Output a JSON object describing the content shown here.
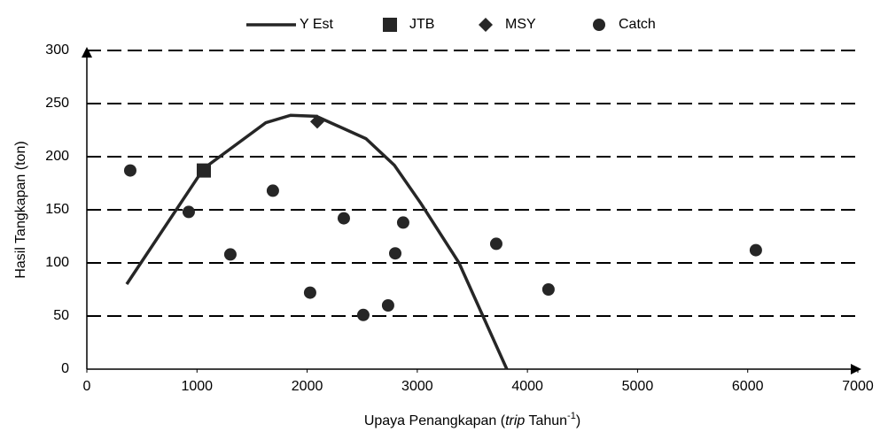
{
  "chart_data": {
    "type": "scatter",
    "y_label": "Hasil Tangkapan (ton)",
    "x_label_parts": [
      "Upaya Penangkapan (",
      "trip",
      " Tahun",
      "-1",
      ")"
    ],
    "xlim": [
      0,
      7000
    ],
    "xticks": [
      0,
      1000,
      2000,
      3000,
      4000,
      5000,
      6000,
      7000
    ],
    "ylim": [
      0,
      300
    ],
    "yticks": [
      0,
      50,
      100,
      150,
      200,
      250,
      300
    ],
    "grid": true,
    "series": [
      {
        "name": "Y Est",
        "style": "line",
        "color": "#262626",
        "x": [
          362,
          1062,
          1625,
          1850,
          2084,
          2534,
          2792,
          3033,
          3379,
          3813
        ],
        "values": [
          80,
          189,
          232,
          239,
          238,
          217,
          192,
          156,
          100,
          0
        ]
      },
      {
        "name": "JTB",
        "style": "marker",
        "marker": "square",
        "color": "#262626",
        "x": [
          1062
        ],
        "values": [
          187
        ]
      },
      {
        "name": "MSY",
        "style": "marker",
        "marker": "diamond",
        "color": "#262626",
        "x": [
          2092
        ],
        "values": [
          233
        ]
      },
      {
        "name": "Catch",
        "style": "marker",
        "marker": "circle",
        "color": "#262626",
        "x": [
          394,
          925,
          1303,
          1689,
          2027,
          2333,
          2510,
          2735,
          2800,
          2872,
          3717,
          4191,
          6074
        ],
        "values": [
          187,
          148,
          108,
          168,
          72,
          142,
          51,
          60,
          109,
          138,
          118,
          75,
          112
        ]
      }
    ]
  }
}
